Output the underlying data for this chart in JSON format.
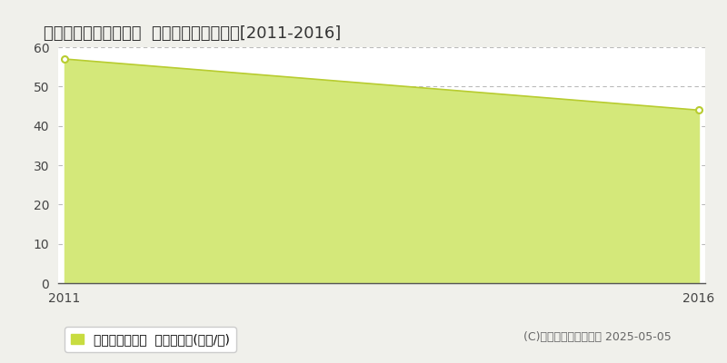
{
  "title": "生駒郡斑鳩町法隆寺南  マンション価格推移[2011-2016]",
  "years": [
    2011,
    2016
  ],
  "values": [
    57,
    44
  ],
  "ylim": [
    0,
    60
  ],
  "yticks": [
    0,
    10,
    20,
    30,
    40,
    50,
    60
  ],
  "xticks": [
    2011,
    2016
  ],
  "line_color": "#b8cc30",
  "fill_color": "#d4e87a",
  "marker_color": "#b8cc30",
  "marker_face": "white",
  "grid_color": "#bbbbbb",
  "bg_color": "#f0f0eb",
  "plot_bg_color": "#ffffff",
  "legend_label": "マンション価格  平均坪単価(万円/坪)",
  "legend_marker_color": "#c8dc40",
  "copyright_text": "(C)土地価格ドットコム 2025-05-05",
  "title_fontsize": 13,
  "tick_fontsize": 10,
  "legend_fontsize": 10,
  "copyright_fontsize": 9
}
